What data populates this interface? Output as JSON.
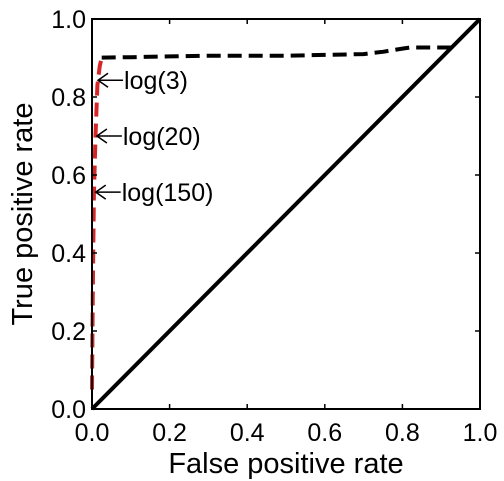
{
  "chart_data": {
    "type": "line",
    "title": "",
    "xlabel": "False positive rate",
    "ylabel": "True positive rate",
    "xlim": [
      0,
      1
    ],
    "ylim": [
      0,
      1
    ],
    "xticks": [
      "0.0",
      "0.2",
      "0.4",
      "0.6",
      "0.8",
      "1.0"
    ],
    "yticks": [
      "0.0",
      "0.2",
      "0.4",
      "0.6",
      "0.8",
      "1.0"
    ],
    "grid": false,
    "legend": "none",
    "series": [
      {
        "style": "dashed",
        "color": "#000000",
        "x": [
          0.025,
          0.1,
          0.2,
          0.3,
          0.4,
          0.5,
          0.6,
          0.7,
          0.75,
          0.8,
          0.82,
          0.85,
          0.9,
          0.93
        ],
        "y": [
          0.901,
          0.902,
          0.904,
          0.906,
          0.906,
          0.906,
          0.908,
          0.91,
          0.916,
          0.924,
          0.927,
          0.927,
          0.927,
          0.927
        ]
      },
      {
        "style": "dashed",
        "color": "#d62728",
        "x": [
          0.0,
          0.002,
          0.005,
          0.009,
          0.014,
          0.02,
          0.025
        ],
        "y": [
          0.05,
          0.3,
          0.55,
          0.7,
          0.83,
          0.88,
          0.9
        ]
      },
      {
        "style": "solid",
        "color": "#000000",
        "x": [
          0,
          1
        ],
        "y": [
          0,
          1
        ]
      }
    ],
    "annotations": [
      {
        "text": "log(3)",
        "x": 0.013,
        "y": 0.843
      },
      {
        "text": "log(20)",
        "x": 0.01,
        "y": 0.7
      },
      {
        "text": "log(150)",
        "x": 0.007,
        "y": 0.556
      }
    ]
  }
}
